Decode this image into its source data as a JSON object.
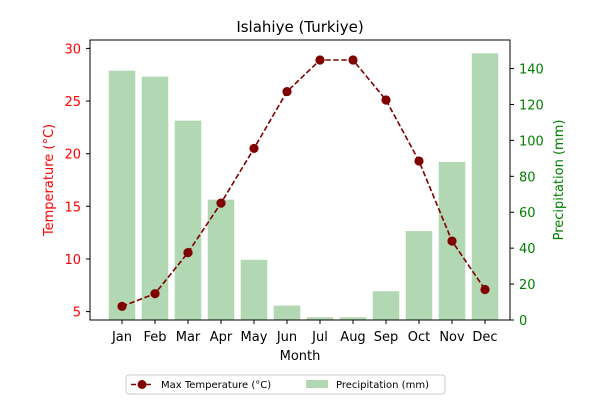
{
  "chart_data": {
    "type": "bar+line",
    "title": "Islahiye (Turkiye)",
    "xlabel": "Month",
    "categories": [
      "Jan",
      "Feb",
      "Mar",
      "Apr",
      "May",
      "Jun",
      "Jul",
      "Aug",
      "Sep",
      "Oct",
      "Nov",
      "Dec"
    ],
    "series": [
      {
        "name": "Max Temperature (°C)",
        "type": "line",
        "axis": "left",
        "values": [
          5.5,
          6.7,
          10.6,
          15.3,
          20.5,
          25.9,
          28.9,
          28.9,
          25.1,
          19.3,
          11.7,
          7.1
        ],
        "color": "#800000"
      },
      {
        "name": "Precipitation (mm)",
        "type": "bar",
        "axis": "right",
        "values": [
          138.8,
          135.5,
          111.0,
          67.0,
          33.5,
          8.0,
          1.5,
          1.5,
          16.0,
          49.5,
          88.0,
          148.5
        ],
        "color": "#b1d8b3"
      }
    ],
    "y_left": {
      "label": "Temperature (°C)",
      "ticks": [
        "5",
        "10",
        "15",
        "20",
        "25",
        "30"
      ],
      "ylim": [
        4.2,
        30.8
      ],
      "color": "#ff0000"
    },
    "y_right": {
      "label": "Precipitation (mm)",
      "ticks": [
        "0",
        "20",
        "40",
        "60",
        "80",
        "100",
        "120",
        "140"
      ],
      "ylim": [
        0,
        155.9
      ],
      "color": "#008000"
    },
    "legend": {
      "placement": "bottom-center",
      "columns": 2
    }
  }
}
